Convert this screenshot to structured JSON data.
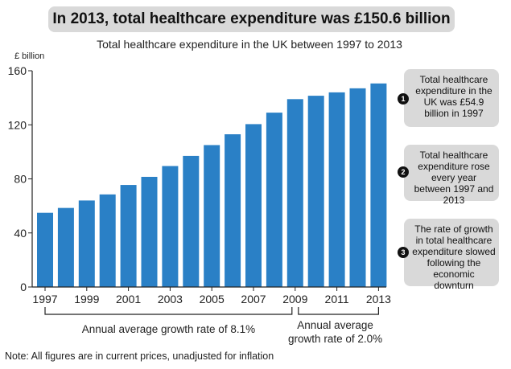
{
  "headline": "In 2013, total healthcare expenditure was £150.6 billion",
  "chart_data": {
    "type": "bar",
    "title": "Total healthcare expenditure in the UK between 1997 to 2013",
    "ylabel": "£ billion",
    "categories": [
      "1997",
      "1998",
      "1999",
      "2000",
      "2001",
      "2002",
      "2003",
      "2004",
      "2005",
      "2006",
      "2007",
      "2008",
      "2009",
      "2010",
      "2011",
      "2012",
      "2013"
    ],
    "values": [
      54.9,
      58.5,
      64,
      68.5,
      75.5,
      81.5,
      89.5,
      97,
      105,
      113,
      120.5,
      129,
      139,
      141.5,
      144,
      147,
      150.6
    ],
    "x_tick_labels": [
      "1997",
      "1999",
      "2001",
      "2003",
      "2005",
      "2007",
      "2009",
      "2011",
      "2013"
    ],
    "y_ticks": [
      "0",
      "40",
      "80",
      "120",
      "160"
    ],
    "ylim": [
      0,
      160
    ],
    "bar_color": "#2a80c6",
    "brackets": [
      {
        "from": "1997",
        "to": "2009",
        "label": "Annual average growth rate of 8.1%"
      },
      {
        "from": "2009",
        "to": "2013",
        "label_line1": "Annual average",
        "label_line2": "growth rate of 2.0%"
      }
    ]
  },
  "callouts": [
    {
      "number": "1",
      "text": "Total healthcare expenditure in the UK was £54.9 billion in 1997"
    },
    {
      "number": "2",
      "text": "Total healthcare expenditure rose every year between 1997 and 2013"
    },
    {
      "number": "3",
      "text": "The rate of growth in total healthcare expenditure slowed following the economic downturn"
    }
  ],
  "note": "Note: All figures are in current prices, unadjusted for inflation"
}
